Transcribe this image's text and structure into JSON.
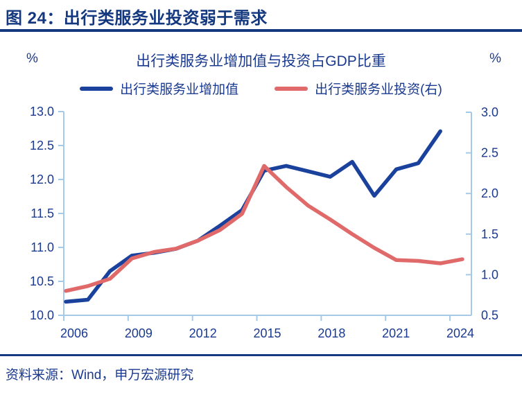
{
  "header": {
    "title": "图 24：出行类服务业投资弱于需求"
  },
  "chart": {
    "title": "出行类服务业增加值与投资占GDP比重",
    "left_unit": "%",
    "right_unit": "%",
    "legend": [
      {
        "label": "出行类服务业增加值",
        "color": "#1a419b"
      },
      {
        "label": "出行类服务业投资(右)",
        "color": "#e06a6a"
      }
    ]
  },
  "chart_data": {
    "type": "line",
    "title": "出行类服务业增加值与投资占GDP比重",
    "x": [
      2006,
      2007,
      2008,
      2009,
      2010,
      2011,
      2012,
      2013,
      2014,
      2015,
      2016,
      2017,
      2018,
      2019,
      2020,
      2021,
      2022,
      2023,
      2024
    ],
    "x_ticks": [
      "2006",
      "2009",
      "2012",
      "2015",
      "2018",
      "2021",
      "2024"
    ],
    "series": [
      {
        "name": "出行类服务业增加值",
        "axis": "left",
        "color": "#1a419b",
        "values": [
          10.2,
          10.23,
          10.65,
          10.88,
          10.92,
          10.98,
          11.1,
          11.32,
          11.55,
          12.13,
          12.2,
          12.12,
          12.04,
          12.26,
          11.76,
          12.15,
          12.24,
          12.71,
          null
        ]
      },
      {
        "name": "出行类服务业投资(右)",
        "axis": "right",
        "color": "#e06a6a",
        "values": [
          0.8,
          0.86,
          0.95,
          1.2,
          1.28,
          1.32,
          1.42,
          1.55,
          1.75,
          2.34,
          2.08,
          1.85,
          1.68,
          1.5,
          1.33,
          1.18,
          1.17,
          1.14,
          1.19
        ]
      }
    ],
    "left_axis": {
      "label": "%",
      "min": 10.0,
      "max": 13.0,
      "ticks": [
        "13.0",
        "12.5",
        "12.0",
        "11.5",
        "11.0",
        "10.5",
        "10.0"
      ]
    },
    "right_axis": {
      "label": "%",
      "min": 0.5,
      "max": 3.0,
      "ticks": [
        "3.0",
        "2.5",
        "2.0",
        "1.5",
        "1.0",
        "0.5"
      ]
    },
    "axis_color": "#a6c9e8",
    "tick_label_color": "#1a3a8f",
    "grid": false,
    "legend_position": "top"
  },
  "footer": {
    "source": "资料来源：Wind，申万宏源研究"
  }
}
